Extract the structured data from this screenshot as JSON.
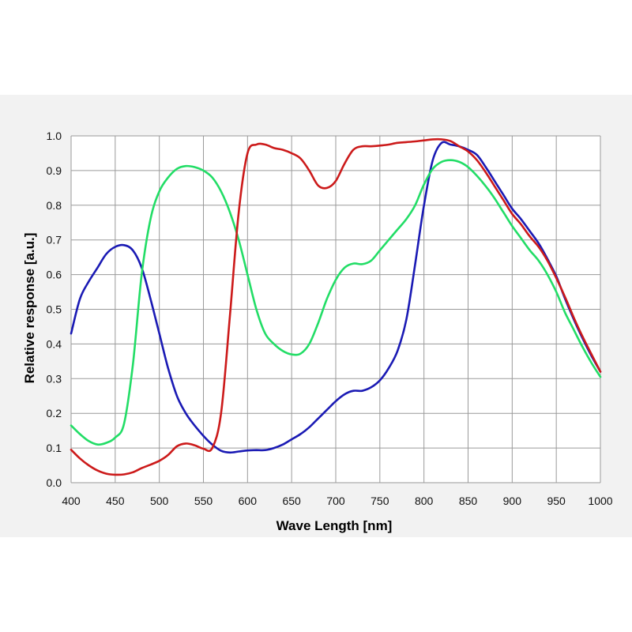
{
  "chart_data": {
    "type": "line",
    "title": "",
    "xlabel": "Wave Length [nm]",
    "ylabel": "Relative response  [a.u.]",
    "xlim": [
      400,
      1000
    ],
    "ylim": [
      0,
      1
    ],
    "grid": true,
    "x_ticks": [
      "400",
      "450",
      "500",
      "550",
      "600",
      "650",
      "700",
      "750",
      "800",
      "850",
      "900",
      "950",
      "1000"
    ],
    "y_ticks": [
      "0.0",
      "0.1",
      "0.2",
      "0.3",
      "0.4",
      "0.5",
      "0.6",
      "0.7",
      "0.8",
      "0.9",
      "1.0"
    ],
    "series": [
      {
        "color": "#1a1ab4",
        "points": [
          [
            400,
            0.43
          ],
          [
            410,
            0.53
          ],
          [
            420,
            0.58
          ],
          [
            430,
            0.62
          ],
          [
            440,
            0.66
          ],
          [
            450,
            0.68
          ],
          [
            460,
            0.685
          ],
          [
            470,
            0.67
          ],
          [
            480,
            0.62
          ],
          [
            490,
            0.53
          ],
          [
            500,
            0.43
          ],
          [
            510,
            0.33
          ],
          [
            520,
            0.25
          ],
          [
            530,
            0.2
          ],
          [
            540,
            0.165
          ],
          [
            550,
            0.135
          ],
          [
            560,
            0.11
          ],
          [
            570,
            0.092
          ],
          [
            580,
            0.087
          ],
          [
            590,
            0.09
          ],
          [
            600,
            0.093
          ],
          [
            610,
            0.094
          ],
          [
            620,
            0.094
          ],
          [
            630,
            0.1
          ],
          [
            640,
            0.11
          ],
          [
            650,
            0.125
          ],
          [
            660,
            0.14
          ],
          [
            670,
            0.16
          ],
          [
            680,
            0.185
          ],
          [
            690,
            0.21
          ],
          [
            700,
            0.235
          ],
          [
            710,
            0.255
          ],
          [
            720,
            0.265
          ],
          [
            730,
            0.265
          ],
          [
            740,
            0.275
          ],
          [
            750,
            0.295
          ],
          [
            760,
            0.33
          ],
          [
            770,
            0.38
          ],
          [
            780,
            0.47
          ],
          [
            790,
            0.63
          ],
          [
            800,
            0.8
          ],
          [
            810,
            0.93
          ],
          [
            820,
            0.98
          ],
          [
            830,
            0.975
          ],
          [
            840,
            0.97
          ],
          [
            850,
            0.96
          ],
          [
            860,
            0.945
          ],
          [
            870,
            0.91
          ],
          [
            880,
            0.87
          ],
          [
            890,
            0.83
          ],
          [
            900,
            0.79
          ],
          [
            910,
            0.76
          ],
          [
            920,
            0.725
          ],
          [
            930,
            0.69
          ],
          [
            940,
            0.645
          ],
          [
            950,
            0.595
          ],
          [
            960,
            0.53
          ],
          [
            970,
            0.47
          ],
          [
            980,
            0.415
          ],
          [
            990,
            0.365
          ],
          [
            1000,
            0.32
          ]
        ]
      },
      {
        "color": "#22dd66",
        "points": [
          [
            400,
            0.165
          ],
          [
            410,
            0.14
          ],
          [
            420,
            0.12
          ],
          [
            430,
            0.11
          ],
          [
            440,
            0.115
          ],
          [
            450,
            0.13
          ],
          [
            460,
            0.17
          ],
          [
            470,
            0.34
          ],
          [
            480,
            0.6
          ],
          [
            490,
            0.76
          ],
          [
            500,
            0.84
          ],
          [
            510,
            0.88
          ],
          [
            520,
            0.905
          ],
          [
            530,
            0.913
          ],
          [
            540,
            0.91
          ],
          [
            550,
            0.9
          ],
          [
            560,
            0.88
          ],
          [
            570,
            0.84
          ],
          [
            580,
            0.78
          ],
          [
            590,
            0.7
          ],
          [
            600,
            0.6
          ],
          [
            610,
            0.5
          ],
          [
            620,
            0.43
          ],
          [
            630,
            0.4
          ],
          [
            640,
            0.38
          ],
          [
            650,
            0.37
          ],
          [
            660,
            0.372
          ],
          [
            670,
            0.4
          ],
          [
            680,
            0.46
          ],
          [
            690,
            0.53
          ],
          [
            700,
            0.585
          ],
          [
            710,
            0.62
          ],
          [
            720,
            0.632
          ],
          [
            730,
            0.63
          ],
          [
            740,
            0.64
          ],
          [
            750,
            0.67
          ],
          [
            760,
            0.7
          ],
          [
            770,
            0.73
          ],
          [
            780,
            0.76
          ],
          [
            790,
            0.8
          ],
          [
            800,
            0.86
          ],
          [
            810,
            0.905
          ],
          [
            820,
            0.925
          ],
          [
            830,
            0.93
          ],
          [
            840,
            0.925
          ],
          [
            850,
            0.91
          ],
          [
            860,
            0.885
          ],
          [
            870,
            0.855
          ],
          [
            880,
            0.82
          ],
          [
            890,
            0.78
          ],
          [
            900,
            0.74
          ],
          [
            910,
            0.705
          ],
          [
            920,
            0.67
          ],
          [
            930,
            0.64
          ],
          [
            940,
            0.6
          ],
          [
            950,
            0.55
          ],
          [
            960,
            0.49
          ],
          [
            970,
            0.44
          ],
          [
            980,
            0.39
          ],
          [
            990,
            0.345
          ],
          [
            1000,
            0.305
          ]
        ]
      },
      {
        "color": "#cc1a1a",
        "points": [
          [
            400,
            0.095
          ],
          [
            410,
            0.07
          ],
          [
            420,
            0.05
          ],
          [
            430,
            0.035
          ],
          [
            440,
            0.026
          ],
          [
            450,
            0.023
          ],
          [
            460,
            0.024
          ],
          [
            470,
            0.03
          ],
          [
            480,
            0.042
          ],
          [
            490,
            0.052
          ],
          [
            500,
            0.063
          ],
          [
            510,
            0.08
          ],
          [
            520,
            0.105
          ],
          [
            530,
            0.113
          ],
          [
            540,
            0.108
          ],
          [
            550,
            0.098
          ],
          [
            560,
            0.1
          ],
          [
            570,
            0.2
          ],
          [
            580,
            0.48
          ],
          [
            590,
            0.78
          ],
          [
            600,
            0.95
          ],
          [
            610,
            0.975
          ],
          [
            620,
            0.975
          ],
          [
            630,
            0.965
          ],
          [
            640,
            0.96
          ],
          [
            650,
            0.95
          ],
          [
            660,
            0.935
          ],
          [
            670,
            0.9
          ],
          [
            680,
            0.857
          ],
          [
            690,
            0.85
          ],
          [
            700,
            0.87
          ],
          [
            710,
            0.92
          ],
          [
            720,
            0.96
          ],
          [
            730,
            0.97
          ],
          [
            740,
            0.97
          ],
          [
            750,
            0.972
          ],
          [
            760,
            0.975
          ],
          [
            770,
            0.98
          ],
          [
            780,
            0.982
          ],
          [
            790,
            0.984
          ],
          [
            800,
            0.987
          ],
          [
            810,
            0.99
          ],
          [
            820,
            0.99
          ],
          [
            830,
            0.985
          ],
          [
            840,
            0.97
          ],
          [
            850,
            0.955
          ],
          [
            860,
            0.93
          ],
          [
            870,
            0.895
          ],
          [
            880,
            0.855
          ],
          [
            890,
            0.815
          ],
          [
            900,
            0.775
          ],
          [
            910,
            0.745
          ],
          [
            920,
            0.71
          ],
          [
            930,
            0.68
          ],
          [
            940,
            0.64
          ],
          [
            950,
            0.59
          ],
          [
            960,
            0.535
          ],
          [
            970,
            0.475
          ],
          [
            980,
            0.42
          ],
          [
            990,
            0.37
          ],
          [
            1000,
            0.32
          ]
        ]
      }
    ]
  }
}
